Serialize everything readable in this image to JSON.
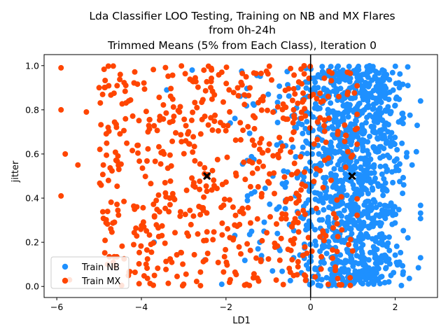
{
  "chart_data": {
    "type": "scatter",
    "title": [
      "Lda Classifier LOO Testing, Training on NB and MX Flares",
      "from 0h-24h",
      "Trimmed Means (5% from Each Class), Iteration 0"
    ],
    "xlabel": "LD1",
    "ylabel": "jitter",
    "xlim": [
      -6.3,
      3.0
    ],
    "ylim": [
      -0.05,
      1.05
    ],
    "xticks": [
      -6,
      -4,
      -2,
      0,
      2
    ],
    "xtick_labels": [
      "−6",
      "−4",
      "−2",
      "0",
      "2"
    ],
    "yticks": [
      0.0,
      0.2,
      0.4,
      0.6,
      0.8,
      1.0
    ],
    "ytick_labels": [
      "0.0",
      "0.2",
      "0.4",
      "0.6",
      "0.8",
      "1.0"
    ],
    "grid": false,
    "legend_position": "lower-left",
    "decision_boundary_x": 0.0,
    "series": [
      {
        "name": "Train NB",
        "color": "#1e90ff",
        "point_count": 1150,
        "points": [
          [
            -2.8,
            0.98
          ],
          [
            -1.9,
            0.74
          ],
          [
            -2.5,
            0.12
          ],
          [
            -2.1,
            0.01
          ],
          [
            -1.5,
            0.57
          ],
          [
            -1.2,
            0.2
          ],
          [
            -1.4,
            0.42
          ],
          [
            -0.9,
            0.07
          ],
          [
            -1.0,
            0.87
          ],
          [
            -0.7,
            0.65
          ],
          [
            -0.5,
            0.28
          ],
          [
            -0.3,
            0.9
          ],
          [
            -0.2,
            0.6
          ],
          [
            -0.4,
            0.13
          ],
          [
            -3.4,
            0.89
          ],
          [
            -3.7,
            0.2
          ],
          [
            -0.6,
            0.45
          ],
          [
            -0.8,
            0.35
          ],
          [
            -1.1,
            0.25
          ],
          [
            -0.3,
            0.5
          ],
          [
            -0.25,
            0.76
          ],
          [
            -0.15,
            0.32
          ],
          [
            -0.05,
            0.08
          ],
          [
            0.3,
            0.95
          ],
          [
            0.5,
            0.4
          ],
          [
            0.8,
            0.2
          ],
          [
            1.2,
            0.7
          ],
          [
            1.5,
            0.55
          ],
          [
            1.8,
            0.33
          ],
          [
            2.1,
            0.9
          ],
          [
            2.3,
            0.22
          ],
          [
            2.5,
            0.61
          ],
          [
            2.6,
            0.13
          ],
          [
            2.4,
            0.55
          ],
          [
            2.2,
            0.46
          ],
          [
            2.0,
            0.82
          ],
          [
            2.3,
            0.91
          ],
          [
            1.9,
            0.05
          ],
          [
            2.1,
            0.11
          ],
          [
            1.7,
            0.98
          ]
        ],
        "label_hint": "dense cluster on LD1 0 to 2.5"
      },
      {
        "name": "Train MX",
        "color": "#ff4500",
        "point_count": 600,
        "points": [
          [
            -5.9,
            0.99
          ],
          [
            -5.9,
            0.8
          ],
          [
            -5.9,
            0.41
          ],
          [
            -5.8,
            0.6
          ],
          [
            -5.5,
            0.55
          ],
          [
            -5.7,
            0.03
          ],
          [
            -5.3,
            0.79
          ],
          [
            -5.0,
            0.9
          ],
          [
            -4.9,
            0.55
          ],
          [
            -4.8,
            0.1
          ],
          [
            -4.5,
            0.96
          ],
          [
            -4.3,
            0.84
          ],
          [
            -3.1,
            0.79
          ],
          [
            -3.0,
            0.01
          ],
          [
            -2.1,
            0.97
          ],
          [
            -1.2,
            0.65
          ],
          [
            -0.4,
            0.8
          ],
          [
            0.3,
            0.84
          ],
          [
            0.9,
            0.19
          ],
          [
            0.6,
            0.31
          ]
        ],
        "label_hint": "spread across LD1 -6 to 1"
      }
    ],
    "centroids": [
      {
        "series": "Train MX",
        "x": -2.45,
        "y": 0.5,
        "marker": "X",
        "color": "#000000"
      },
      {
        "series": "Train NB",
        "x": 0.98,
        "y": 0.5,
        "marker": "X",
        "color": "#000000"
      }
    ]
  }
}
